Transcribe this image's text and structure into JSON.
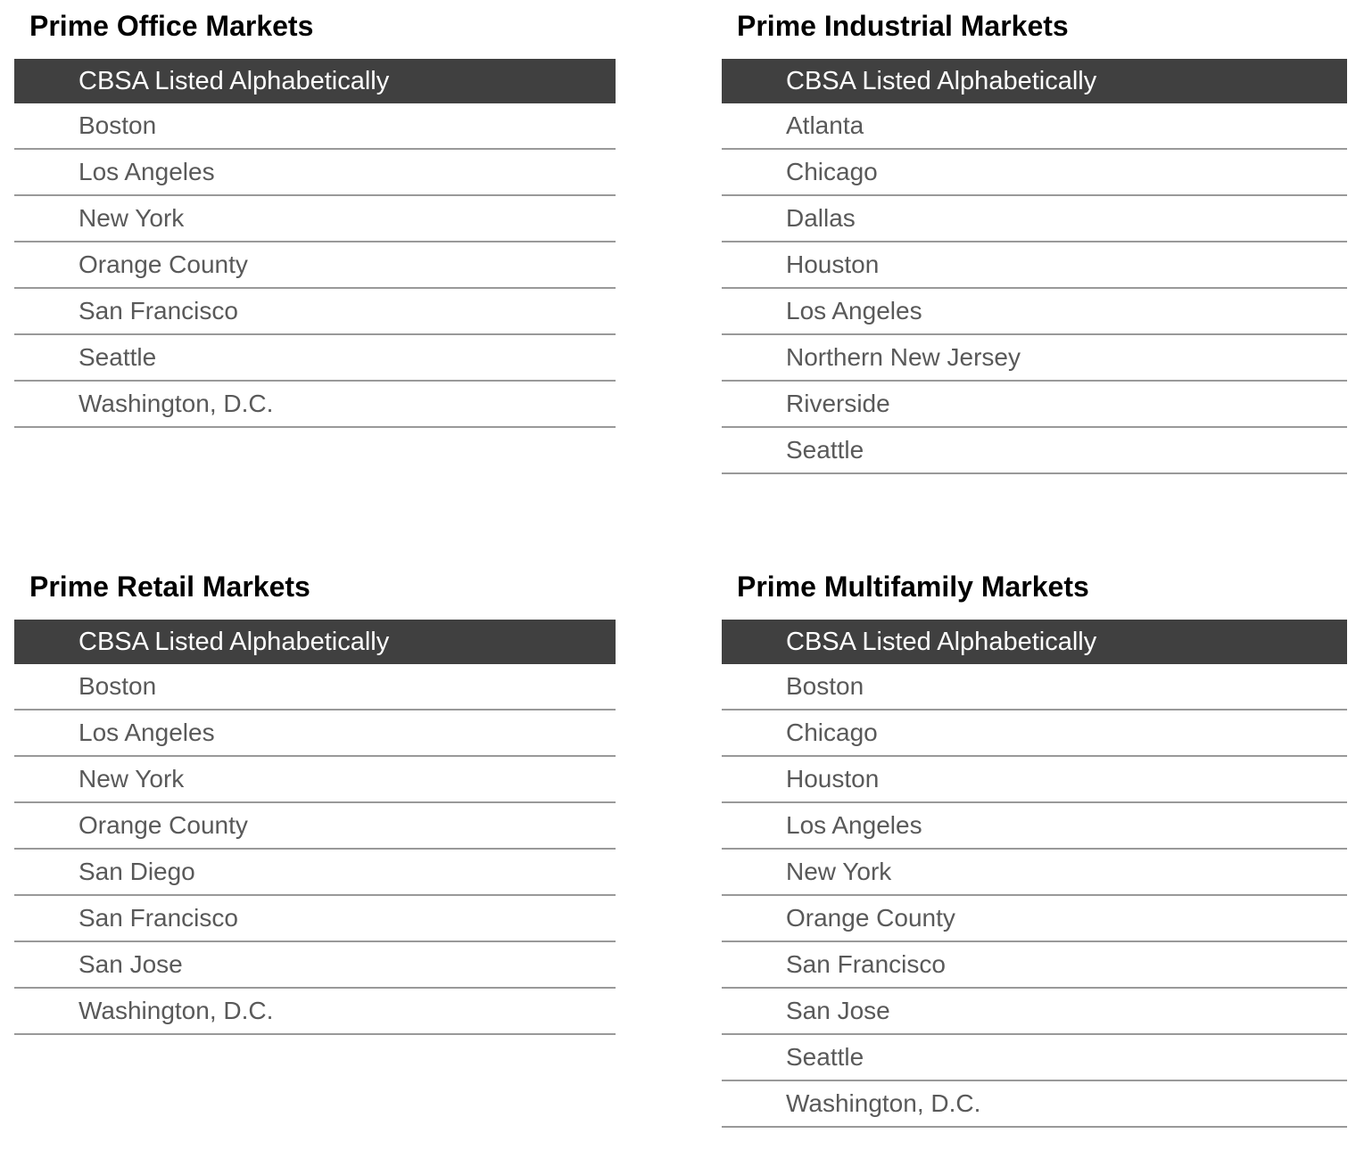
{
  "tables": [
    {
      "title": "Prime Office Markets",
      "header": "CBSA Listed Alphabetically",
      "rows": [
        "Boston",
        "Los Angeles",
        "New York",
        "Orange County",
        "San Francisco",
        "Seattle",
        "Washington, D.C."
      ]
    },
    {
      "title": "Prime Industrial Markets",
      "header": "CBSA Listed Alphabetically",
      "rows": [
        "Atlanta",
        "Chicago",
        "Dallas",
        "Houston",
        "Los Angeles",
        "Northern New Jersey",
        "Riverside",
        "Seattle"
      ]
    },
    {
      "title": "Prime Retail Markets",
      "header": "CBSA Listed Alphabetically",
      "rows": [
        "Boston",
        "Los Angeles",
        "New York",
        "Orange County",
        "San Diego",
        "San Francisco",
        "San Jose",
        "Washington, D.C."
      ]
    },
    {
      "title": "Prime Multifamily Markets",
      "header": "CBSA Listed Alphabetically",
      "rows": [
        "Boston",
        "Chicago",
        "Houston",
        "Los Angeles",
        "New York",
        "Orange County",
        "San Francisco",
        "San Jose",
        "Seattle",
        "Washington, D.C."
      ]
    }
  ],
  "colors": {
    "header_bg": "#404040",
    "header_text": "#ffffff",
    "row_text": "#595959",
    "row_border": "#999999",
    "title_text": "#000000"
  }
}
